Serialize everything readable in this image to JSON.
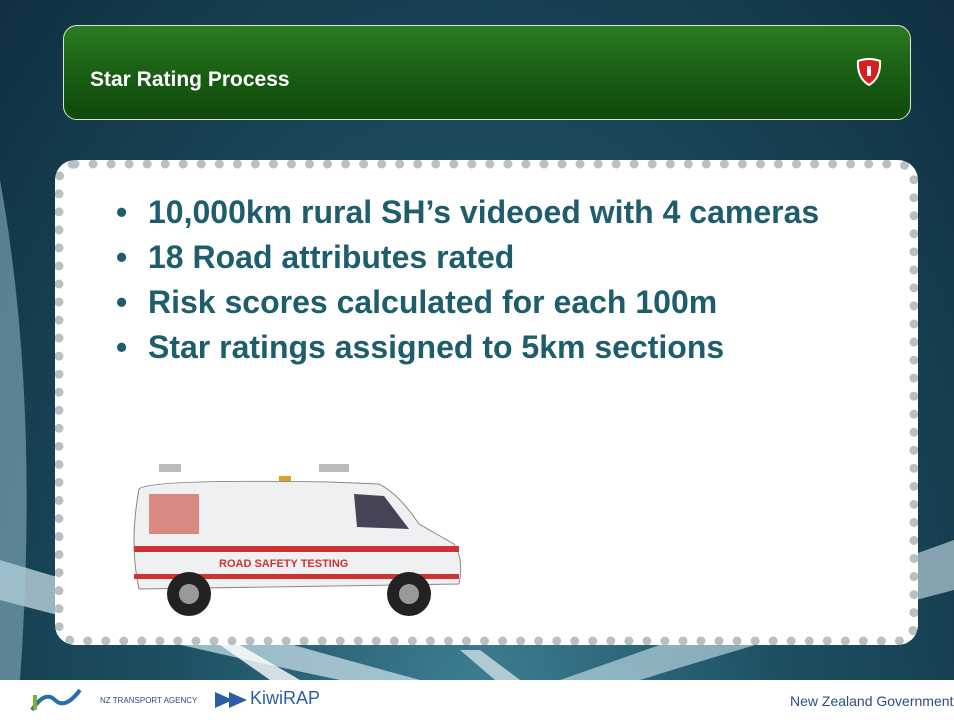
{
  "header": {
    "title": "Star Rating Process"
  },
  "bullets": [
    "10,000km rural SH’s videoed with 4 cameras",
    "18 Road attributes rated",
    "Risk scores calculated for each 100m",
    "Star ratings assigned to 5km sections"
  ],
  "van": {
    "label": "ROAD SAFETY TESTING"
  },
  "footer": {
    "agency": "NZ TRANSPORT AGENCY",
    "program": "KiwiRAP",
    "government": "New Zealand Government"
  }
}
